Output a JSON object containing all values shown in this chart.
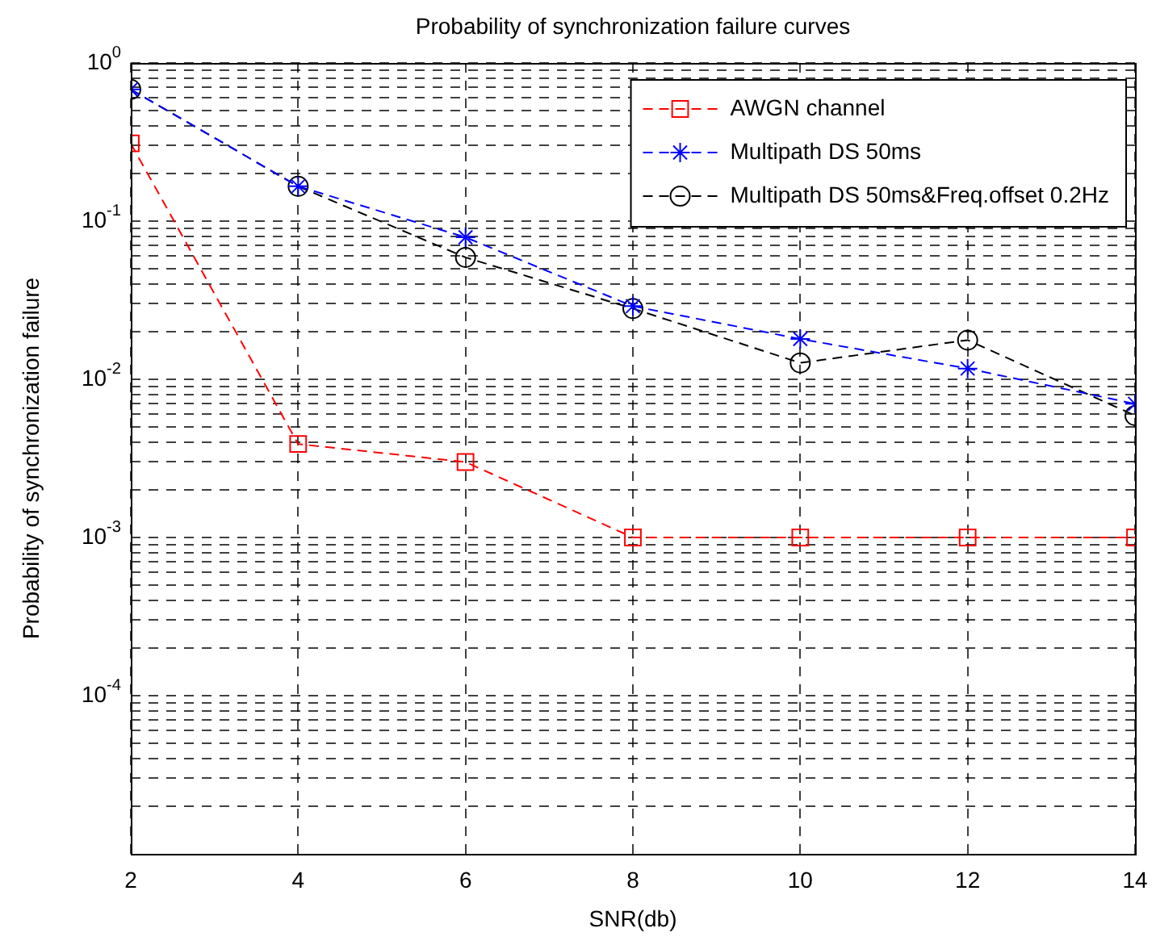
{
  "chart_data": {
    "type": "line",
    "title": "Probability of synchronization failure curves",
    "xlabel": "SNR(db)",
    "ylabel": "Probability of synchronization failure",
    "x": [
      2,
      4,
      6,
      8,
      10,
      12,
      14
    ],
    "series": [
      {
        "name": "AWGN channel",
        "color": "#ff0000",
        "marker": "square",
        "values": [
          0.31,
          0.0039,
          0.003,
          0.001,
          0.001,
          0.001,
          0.001
        ]
      },
      {
        "name": "Multipath DS 50ms",
        "color": "#0000ff",
        "marker": "cross",
        "values": [
          0.68,
          0.166,
          0.079,
          0.029,
          0.018,
          0.0117,
          0.007
        ]
      },
      {
        "name": "Multipath DS 50ms&Freq.offset 0.2Hz",
        "color": "#000000",
        "marker": "circle",
        "values": [
          0.68,
          0.166,
          0.059,
          0.028,
          0.0127,
          0.0177,
          0.0059
        ]
      }
    ],
    "log": "y",
    "line_style": "dashed",
    "grid": true,
    "legend": "top right",
    "xlim": [
      2,
      14
    ],
    "xticks": [
      2,
      4,
      6,
      8,
      10,
      12,
      14
    ],
    "ylim": [
      1e-05,
      1
    ],
    "yticks": [
      {
        "value": 2e-05,
        "label": null
      },
      {
        "value": 3e-05,
        "label": null
      },
      {
        "value": 4e-05,
        "label": null
      },
      {
        "value": 5e-05,
        "label": null
      },
      {
        "value": 6e-05,
        "label": null
      },
      {
        "value": 7e-05,
        "label": null
      },
      {
        "value": 8e-05,
        "label": null
      },
      {
        "value": 9e-05,
        "label": null
      },
      {
        "value": 0.0001,
        "label": "10$^{-4}$"
      },
      {
        "value": 0.0002,
        "label": null
      },
      {
        "value": 0.0003,
        "label": null
      },
      {
        "value": 0.0004,
        "label": null
      },
      {
        "value": 0.0005,
        "label": null
      },
      {
        "value": 0.0006,
        "label": null
      },
      {
        "value": 0.0007,
        "label": null
      },
      {
        "value": 0.0008,
        "label": null
      },
      {
        "value": 0.0009,
        "label": null
      },
      {
        "value": 0.001,
        "label": "10$^{-3}$"
      },
      {
        "value": 0.002,
        "label": null
      },
      {
        "value": 0.003,
        "label": null
      },
      {
        "value": 0.004,
        "label": null
      },
      {
        "value": 0.005,
        "label": null
      },
      {
        "value": 0.006,
        "label": null
      },
      {
        "value": 0.007,
        "label": null
      },
      {
        "value": 0.008,
        "label": null
      },
      {
        "value": 0.009,
        "label": null
      },
      {
        "value": 0.01,
        "label": "10$^{-2}$"
      },
      {
        "value": 0.02,
        "label": null
      },
      {
        "value": 0.03,
        "label": null
      },
      {
        "value": 0.04,
        "label": null
      },
      {
        "value": 0.05,
        "label": null
      },
      {
        "value": 0.06,
        "label": null
      },
      {
        "value": 0.07,
        "label": null
      },
      {
        "value": 0.08,
        "label": null
      },
      {
        "value": 0.09,
        "label": null
      },
      {
        "value": 0.1,
        "label": "10$^{-1}$"
      },
      {
        "value": 0.2,
        "label": null
      },
      {
        "value": 0.3,
        "label": null
      },
      {
        "value": 0.4,
        "label": null
      },
      {
        "value": 0.5,
        "label": null
      },
      {
        "value": 0.6,
        "label": null
      },
      {
        "value": 0.7,
        "label": null
      },
      {
        "value": 0.8,
        "label": null
      },
      {
        "value": 0.9,
        "label": null
      },
      {
        "value": 1,
        "label": "10$^{0}$"
      }
    ]
  }
}
